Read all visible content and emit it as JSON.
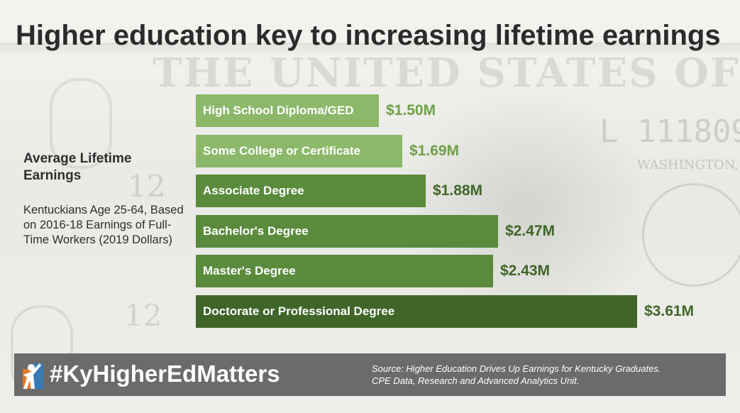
{
  "title": "Higher education key to increasing lifetime earnings",
  "side": {
    "heading": "Average Lifetime Earnings",
    "note": "Kentuckians Age 25-64, Based on 2016-18 Earnings of Full-Time Workers (2019 Dollars)"
  },
  "footer": {
    "hashtag": "#KyHigherEdMatters",
    "source_line1": "Source: Higher Education Drives Up Earnings for Kentucky Graduates.",
    "source_line2": "CPE Data, Research and Advanced Analytics Unit."
  },
  "background": {
    "bill_text": "THE UNITED STATES OF AMERICA",
    "serial": "L 111809",
    "city": "WASHINGTON,"
  },
  "colors": {
    "light_green": "#8cb86a",
    "mid_green": "#5a8a3c",
    "dark_green": "#3f6628",
    "value_light": "#6ea048",
    "value_dark": "#3f6628",
    "footer_bg": "#6b6b6b",
    "title": "#2b2b2b"
  },
  "chart_data": {
    "type": "bar",
    "orientation": "horizontal",
    "categories": [
      "High School Diploma/GED",
      "Some College or Certificate",
      "Associate Degree",
      "Bachelor's Degree",
      "Master's Degree",
      "Doctorate or Professional Degree"
    ],
    "values": [
      1.5,
      1.69,
      1.88,
      2.47,
      2.43,
      3.61
    ],
    "value_labels": [
      "$1.50M",
      "$1.69M",
      "$1.88M",
      "$2.47M",
      "$2.43M",
      "$3.61M"
    ],
    "units": "millions of dollars",
    "bar_colors": [
      "#8cb86a",
      "#8cb86a",
      "#5a8a3c",
      "#5a8a3c",
      "#5a8a3c",
      "#3f6628"
    ],
    "value_colors": [
      "#6ea048",
      "#6ea048",
      "#3f6628",
      "#3f6628",
      "#3f6628",
      "#3f6628"
    ],
    "title": "Higher education key to increasing lifetime earnings",
    "xlabel": "",
    "ylabel": "",
    "xlim": [
      0,
      3.61
    ],
    "grid": false,
    "legend": "none"
  }
}
